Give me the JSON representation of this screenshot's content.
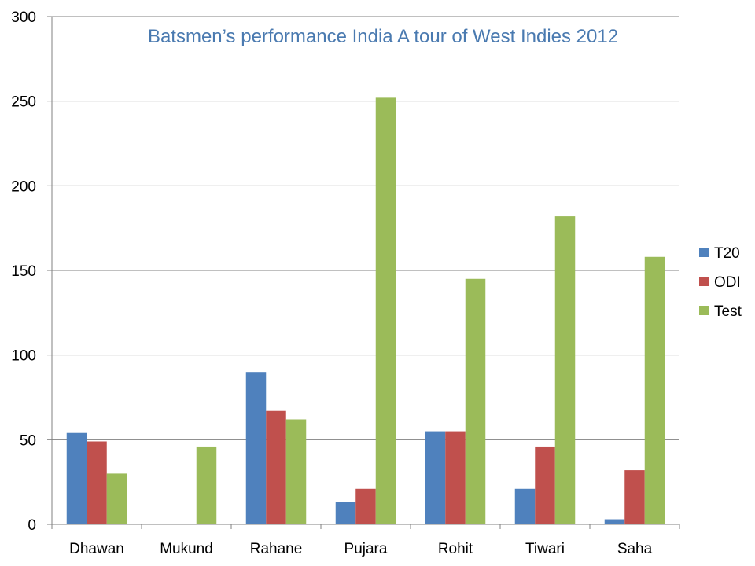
{
  "chart_data": {
    "type": "bar",
    "title": "Batsmen’s performance India A tour of West Indies 2012",
    "categories": [
      "Dhawan",
      "Mukund",
      "Rahane",
      "Pujara",
      "Rohit",
      "Tiwari",
      "Saha"
    ],
    "series": [
      {
        "name": "T20",
        "color": "#4f81bd",
        "values": [
          54,
          0,
          90,
          13,
          55,
          21,
          3
        ]
      },
      {
        "name": "ODI",
        "color": "#c0504d",
        "values": [
          49,
          0,
          67,
          21,
          55,
          46,
          32
        ]
      },
      {
        "name": "Test",
        "color": "#9bbb59",
        "values": [
          30,
          46,
          62,
          252,
          145,
          182,
          158
        ]
      }
    ],
    "ylim": [
      0,
      300
    ],
    "yticks": [
      "0",
      "50",
      "100",
      "150",
      "200",
      "250",
      "300"
    ],
    "grid": true,
    "legend": "right"
  }
}
